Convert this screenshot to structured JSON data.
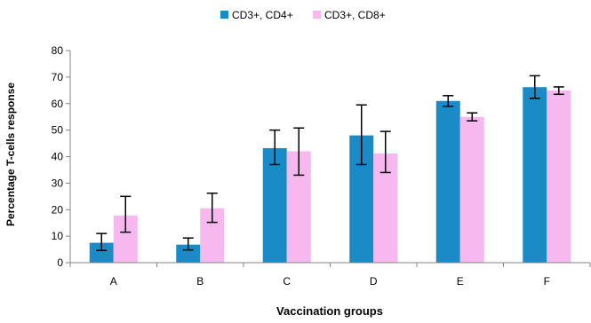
{
  "chart_data": {
    "type": "bar",
    "title": "",
    "xlabel": "Vaccination groups",
    "ylabel": "Percentage  T-cells response",
    "categories": [
      "A",
      "B",
      "C",
      "D",
      "E",
      "F"
    ],
    "ylim": [
      0,
      80
    ],
    "yticks": [
      0,
      10,
      20,
      30,
      40,
      50,
      60,
      70,
      80
    ],
    "grid": false,
    "legend_position": "top-center",
    "series": [
      {
        "name": "CD3+, CD4+",
        "color": "#1a8bc7",
        "values": [
          7.5,
          6.8,
          43.2,
          48.0,
          61.0,
          66.2
        ],
        "error_low": [
          4.6,
          4.8,
          37.0,
          37.0,
          59.0,
          62.0
        ],
        "error_high": [
          11.0,
          9.3,
          50.0,
          59.5,
          63.0,
          70.5
        ]
      },
      {
        "name": "CD3+, CD8+",
        "color": "#f7b7ef",
        "values": [
          17.8,
          20.5,
          42.0,
          41.2,
          55.0,
          65.0
        ],
        "error_low": [
          11.5,
          15.2,
          33.0,
          34.0,
          53.5,
          63.5
        ],
        "error_high": [
          25.0,
          26.2,
          50.8,
          49.5,
          56.5,
          66.3
        ]
      }
    ]
  }
}
